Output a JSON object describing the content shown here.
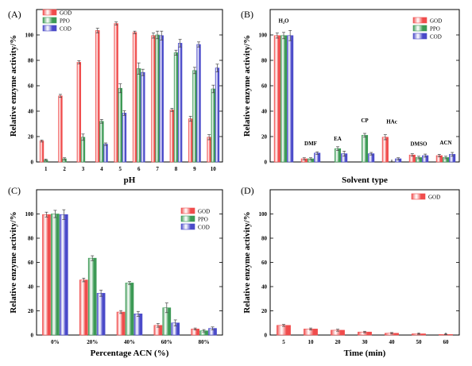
{
  "figure": {
    "ylabel": "Relative enzyme activity/%"
  },
  "colors": {
    "GOD": "#f04c4c",
    "PPO": "#3c9a55",
    "COD": "#4a4ac9"
  },
  "chart_data": [
    {
      "panel": "(A)",
      "type": "bar",
      "xlabel": "pH",
      "ylabel": "Relative enzyme activity/%",
      "ylim": [
        0,
        120
      ],
      "yticks": [
        0,
        20,
        40,
        60,
        80,
        100
      ],
      "legend_position": "top-left",
      "categories": [
        "1",
        "2",
        "3",
        "4",
        "5",
        "6",
        "7",
        "8",
        "9",
        "10"
      ],
      "series": [
        {
          "name": "GOD",
          "values": [
            16.5,
            52,
            78.5,
            103.5,
            109,
            102,
            99.5,
            41,
            34,
            19.5
          ],
          "errors": [
            0.8,
            1.2,
            1.2,
            1.8,
            1.2,
            1,
            2,
            1.2,
            2,
            2
          ]
        },
        {
          "name": "PPO",
          "values": [
            1.5,
            2.5,
            19.5,
            32,
            58,
            73.5,
            100,
            86,
            72,
            57.5
          ],
          "errors": [
            0.8,
            0.8,
            2.5,
            1.5,
            3.5,
            4.5,
            3,
            2,
            2.5,
            3
          ]
        },
        {
          "name": "COD",
          "values": [
            0,
            0,
            0,
            14,
            38.5,
            70.5,
            99.5,
            93.5,
            92.5,
            74
          ],
          "errors": [
            0,
            0,
            0,
            1,
            1.8,
            2.5,
            3.5,
            3,
            2,
            3
          ]
        }
      ]
    },
    {
      "panel": "(B)",
      "type": "bar",
      "xlabel": "Solvent type",
      "ylabel": "Relative enzyme activity/%",
      "ylim": [
        0,
        120
      ],
      "yticks": [
        0,
        20,
        40,
        60,
        80,
        100
      ],
      "legend_position": "top-right",
      "categories": [
        "H2O",
        "DMF",
        "EA",
        "CP",
        "HAc",
        "DMSO",
        "ACN"
      ],
      "category_labels": [
        "H₂O",
        "DMF",
        "EA",
        "CP",
        "HAc",
        "DMSO",
        "ACN"
      ],
      "series": [
        {
          "name": "GOD",
          "values": [
            99.5,
            2.5,
            0,
            0,
            19.5,
            5.5,
            5
          ],
          "errors": [
            2,
            0.8,
            0,
            0,
            2,
            1,
            1
          ]
        },
        {
          "name": "PPO",
          "values": [
            99.5,
            2.5,
            10.5,
            21,
            0,
            3.5,
            3.5
          ],
          "errors": [
            2.5,
            0.8,
            1.5,
            1.5,
            0,
            1,
            1
          ]
        },
        {
          "name": "COD",
          "values": [
            99.5,
            7,
            6.5,
            6.5,
            2.5,
            5,
            6
          ],
          "errors": [
            4,
            1,
            2,
            1,
            0.8,
            1.2,
            1.5
          ]
        }
      ]
    },
    {
      "panel": "(C)",
      "type": "bar",
      "xlabel": "Percentage ACN (%)",
      "ylabel": "Relative enzyme activity/%",
      "ylim": [
        0,
        120
      ],
      "yticks": [
        0,
        20,
        40,
        60,
        80,
        100
      ],
      "legend_position": "top-right",
      "categories": [
        "0%",
        "20%",
        "40%",
        "60%",
        "80%"
      ],
      "series": [
        {
          "name": "GOD",
          "values": [
            99.5,
            45.5,
            19,
            8,
            5
          ],
          "errors": [
            2,
            1.5,
            1.2,
            1.5,
            0.8
          ]
        },
        {
          "name": "PPO",
          "values": [
            100,
            63.5,
            43,
            22.5,
            3.5
          ],
          "errors": [
            3,
            2,
            1.2,
            4,
            1
          ]
        },
        {
          "name": "COD",
          "values": [
            99.5,
            34.5,
            17.5,
            10,
            5.5
          ],
          "errors": [
            4,
            2.5,
            2,
            2.5,
            1.2
          ]
        }
      ]
    },
    {
      "panel": "(D)",
      "type": "bar",
      "xlabel": "Time (min)",
      "ylabel": "Relative enzyme activity/%",
      "ylim": [
        0,
        120
      ],
      "yticks": [
        0,
        20,
        40,
        60,
        80,
        100
      ],
      "legend_position": "top-right",
      "categories": [
        "5",
        "10",
        "20",
        "30",
        "40",
        "50",
        "60"
      ],
      "series": [
        {
          "name": "GOD",
          "values": [
            8,
            5,
            4,
            2.5,
            1.5,
            1,
            0.5
          ],
          "errors": [
            0.8,
            0.8,
            0.8,
            0.6,
            0.6,
            0.4,
            0.3
          ]
        }
      ]
    }
  ]
}
